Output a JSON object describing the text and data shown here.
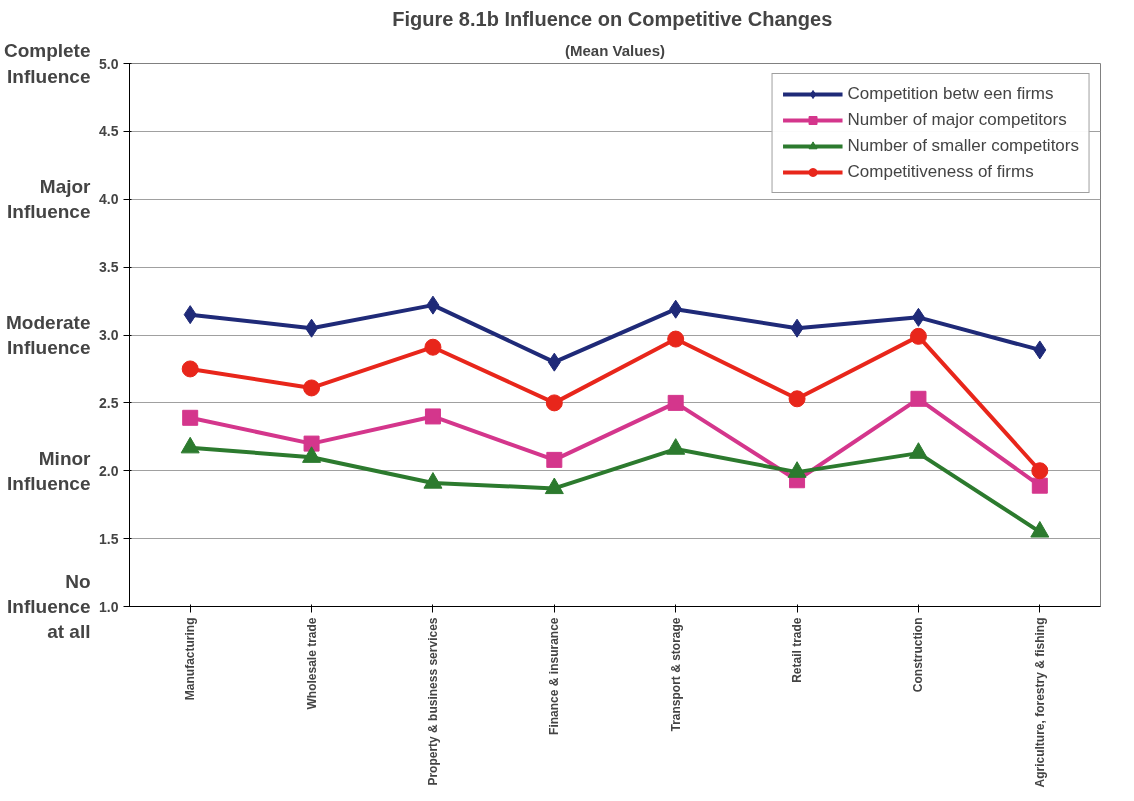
{
  "chart_data": {
    "type": "line",
    "title": "Figure 8.1b  Influence on Competitive Changes",
    "subtitle": "(Mean Values)",
    "categories": [
      "Manufacturing",
      "Wholesale trade",
      "Property & business services",
      "Finance & insurance",
      "Transport & storage",
      "Retail trade",
      "Construction",
      "Agriculture, forestry & fishing"
    ],
    "series": [
      {
        "name": "Competition betw een firms",
        "color": "#1f2a78",
        "marker": "diamond",
        "values": [
          3.15,
          3.05,
          3.22,
          2.8,
          3.19,
          3.05,
          3.13,
          2.89
        ]
      },
      {
        "name": "Number of major competitors",
        "color": "#d4368c",
        "marker": "square",
        "values": [
          2.39,
          2.2,
          2.4,
          2.08,
          2.5,
          1.93,
          2.53,
          1.89
        ]
      },
      {
        "name": "Number of smaller competitors",
        "color": "#2c7a2e",
        "marker": "triangle",
        "values": [
          2.17,
          2.1,
          1.91,
          1.87,
          2.16,
          1.99,
          2.13,
          1.55
        ]
      },
      {
        "name": "Competitiveness of firms",
        "color": "#e8261b",
        "marker": "circle",
        "values": [
          2.75,
          2.61,
          2.91,
          2.5,
          2.97,
          2.53,
          2.99,
          2.0
        ]
      }
    ],
    "ylim": [
      1.0,
      5.0
    ],
    "yticks": [
      {
        "value": 1,
        "label": "1.0"
      },
      {
        "value": 1.5,
        "label": "1.5"
      },
      {
        "value": 2,
        "label": "2.0"
      },
      {
        "value": 2.5,
        "label": "2.5"
      },
      {
        "value": 3,
        "label": "3.0"
      },
      {
        "value": 3.5,
        "label": "3.5"
      },
      {
        "value": 4,
        "label": "4.0"
      },
      {
        "value": 4.5,
        "label": "4.5"
      },
      {
        "value": 5,
        "label": "5.0"
      }
    ],
    "grid": "y",
    "legend": "top right",
    "line_style": "solid",
    "annotations": [
      "Complete\nInfluence",
      "Major\nInfluence",
      "Moderate\nInfluence",
      "Minor\nInfluence",
      "No\nInfluence\nat all"
    ]
  }
}
